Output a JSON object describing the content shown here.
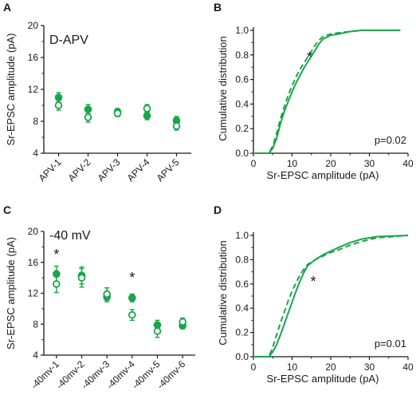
{
  "colors": {
    "green": "#1aa54a",
    "axis": "#1a1a1a"
  },
  "chart_data": [
    {
      "panel": "A",
      "type": "scatter",
      "annotation": "D-APV",
      "ylabel": "Sr-EPSC amplitude (pA)",
      "xlabel": "",
      "categories": [
        "APV-1",
        "APV-2",
        "APV-3",
        "APV-4",
        "APV-5"
      ],
      "yticks": [
        "4",
        "8",
        "12",
        "16",
        "20"
      ],
      "ylim": [
        4,
        20
      ],
      "series": [
        {
          "style": "filled",
          "values": [
            11.0,
            9.5,
            9.2,
            8.7,
            8.1
          ],
          "errors": [
            0.6,
            0.6,
            0.4,
            0.5,
            0.5
          ]
        },
        {
          "style": "open",
          "values": [
            10.0,
            8.5,
            9.0,
            9.6,
            7.4
          ],
          "errors": [
            0.6,
            0.6,
            0.4,
            0.5,
            0.5
          ]
        }
      ],
      "stars": []
    },
    {
      "panel": "B",
      "type": "line",
      "ylabel": "Cumulative distribution",
      "xlabel": "Sr-EPSC amplitude (pA)",
      "xticks": [
        "0",
        "10",
        "20",
        "30",
        "40"
      ],
      "yticks": [
        "0.0",
        "0.2",
        "0.4",
        "0.6",
        "0.8",
        "1.0"
      ],
      "xlim": [
        0,
        40
      ],
      "ylim": [
        0,
        1
      ],
      "pvalue": "p=0.02",
      "star": "*",
      "star_position": {
        "x": 14.5,
        "y": 0.78
      },
      "series": [
        {
          "style": "solid",
          "points": [
            [
              0,
              0
            ],
            [
              4,
              0
            ],
            [
              5,
              0.04
            ],
            [
              6,
              0.12
            ],
            [
              7,
              0.24
            ],
            [
              8,
              0.34
            ],
            [
              9,
              0.42
            ],
            [
              10,
              0.5
            ],
            [
              11,
              0.57
            ],
            [
              12,
              0.63
            ],
            [
              13,
              0.69
            ],
            [
              14,
              0.74
            ],
            [
              15,
              0.79
            ],
            [
              16,
              0.84
            ],
            [
              17,
              0.89
            ],
            [
              18,
              0.93
            ],
            [
              20,
              0.96
            ],
            [
              22,
              0.97
            ],
            [
              25,
              0.99
            ],
            [
              28,
              1.0
            ],
            [
              38,
              1.0
            ]
          ]
        },
        {
          "style": "dashed",
          "points": [
            [
              0,
              0
            ],
            [
              4,
              0
            ],
            [
              5,
              0.06
            ],
            [
              6,
              0.16
            ],
            [
              7,
              0.28
            ],
            [
              8,
              0.38
            ],
            [
              9,
              0.47
            ],
            [
              10,
              0.55
            ],
            [
              11,
              0.62
            ],
            [
              12,
              0.68
            ],
            [
              13,
              0.73
            ],
            [
              14,
              0.78
            ],
            [
              15,
              0.83
            ],
            [
              16,
              0.88
            ],
            [
              17,
              0.92
            ],
            [
              18,
              0.95
            ],
            [
              20,
              0.97
            ],
            [
              22,
              0.98
            ],
            [
              25,
              0.99
            ],
            [
              28,
              1.0
            ],
            [
              38,
              1.0
            ]
          ]
        }
      ]
    },
    {
      "panel": "C",
      "type": "scatter",
      "annotation": "-40 mV",
      "ylabel": "Sr-EPSC amplitude (pA)",
      "xlabel": "",
      "categories": [
        "-40mv-1",
        "-40mv-2",
        "-40mv-3",
        "-40mv-4",
        "-40mv-5",
        "-40mv-6"
      ],
      "yticks": [
        "4",
        "8",
        "12",
        "16",
        "20"
      ],
      "ylim": [
        4,
        20
      ],
      "series": [
        {
          "style": "filled",
          "values": [
            14.5,
            14.3,
            11.5,
            11.4,
            7.9,
            7.8
          ],
          "errors": [
            1.0,
            1.1,
            0.6,
            0.5,
            0.6,
            0.4
          ]
        },
        {
          "style": "open",
          "values": [
            13.2,
            14.0,
            11.9,
            9.2,
            7.1,
            8.3
          ],
          "errors": [
            1.1,
            1.2,
            0.8,
            0.7,
            0.8,
            0.5
          ]
        }
      ],
      "stars": [
        {
          "category": 0,
          "value": 17.0,
          "label": "*"
        },
        {
          "category": 3,
          "value": 14.0,
          "label": "*"
        }
      ]
    },
    {
      "panel": "D",
      "type": "line",
      "ylabel": "Cumulative distribution",
      "xlabel": "Sr-EPSC amplitude (pA)",
      "xticks": [
        "0",
        "10",
        "20",
        "30",
        "40"
      ],
      "yticks": [
        "0.0",
        "0.2",
        "0.4",
        "0.6",
        "0.8",
        "1.0"
      ],
      "xlim": [
        0,
        40
      ],
      "ylim": [
        0,
        1
      ],
      "pvalue": "p=0.01",
      "star": "*",
      "star_position": {
        "x": 15.5,
        "y": 0.62
      },
      "series": [
        {
          "style": "solid",
          "points": [
            [
              0,
              0
            ],
            [
              4,
              0
            ],
            [
              5,
              0.04
            ],
            [
              6,
              0.1
            ],
            [
              7,
              0.18
            ],
            [
              8,
              0.27
            ],
            [
              9,
              0.36
            ],
            [
              10,
              0.45
            ],
            [
              11,
              0.54
            ],
            [
              12,
              0.62
            ],
            [
              13,
              0.69
            ],
            [
              14,
              0.75
            ],
            [
              16,
              0.8
            ],
            [
              18,
              0.84
            ],
            [
              20,
              0.87
            ],
            [
              22,
              0.9
            ],
            [
              25,
              0.94
            ],
            [
              28,
              0.97
            ],
            [
              32,
              0.99
            ],
            [
              40,
              1.0
            ]
          ]
        },
        {
          "style": "dashed",
          "points": [
            [
              0,
              0
            ],
            [
              4,
              0
            ],
            [
              5,
              0.08
            ],
            [
              6,
              0.18
            ],
            [
              7,
              0.28
            ],
            [
              8,
              0.37
            ],
            [
              9,
              0.46
            ],
            [
              10,
              0.54
            ],
            [
              11,
              0.61
            ],
            [
              12,
              0.67
            ],
            [
              13,
              0.72
            ],
            [
              14,
              0.76
            ],
            [
              16,
              0.8
            ],
            [
              18,
              0.83
            ],
            [
              20,
              0.86
            ],
            [
              22,
              0.88
            ],
            [
              25,
              0.92
            ],
            [
              28,
              0.95
            ],
            [
              32,
              0.98
            ],
            [
              40,
              1.0
            ]
          ]
        }
      ]
    }
  ]
}
